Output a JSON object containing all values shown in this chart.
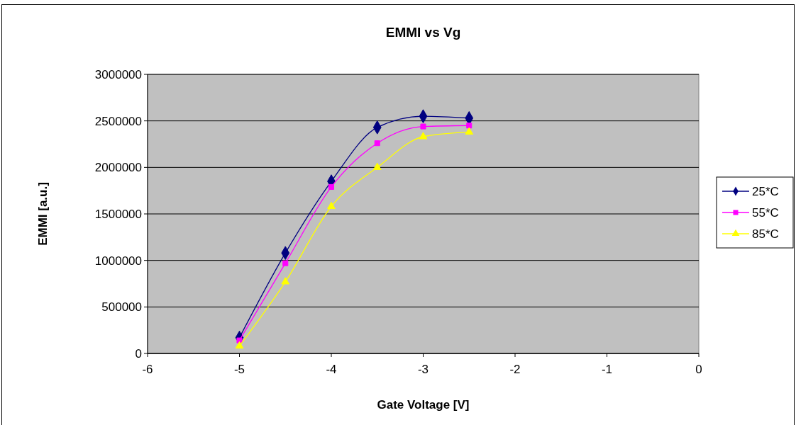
{
  "chart_data": {
    "type": "line",
    "title": "EMMI vs Vg",
    "xlabel": "Gate Voltage [V]",
    "ylabel": "EMMI [a.u.]",
    "x": [
      -5,
      -4.5,
      -4,
      -3.5,
      -3,
      -2.5
    ],
    "series": [
      {
        "name": "25*C",
        "color": "#000080",
        "marker": "diamond",
        "values": [
          170000,
          1080000,
          1850000,
          2430000,
          2550000,
          2530000
        ]
      },
      {
        "name": "55*C",
        "color": "#ff00ff",
        "marker": "square",
        "values": [
          140000,
          970000,
          1790000,
          2260000,
          2440000,
          2450000
        ]
      },
      {
        "name": "85*C",
        "color": "#ffff00",
        "marker": "triangle",
        "values": [
          80000,
          770000,
          1580000,
          2000000,
          2330000,
          2380000
        ]
      }
    ],
    "xlim": [
      -6,
      0
    ],
    "xticks": [
      -6,
      -5,
      -4,
      -3,
      -2,
      -1,
      0
    ],
    "ylim": [
      0,
      3000000
    ],
    "yticks": [
      0,
      500000,
      1000000,
      1500000,
      2000000,
      2500000,
      3000000
    ],
    "grid": "y",
    "legend": "right",
    "line_style": "solid"
  }
}
